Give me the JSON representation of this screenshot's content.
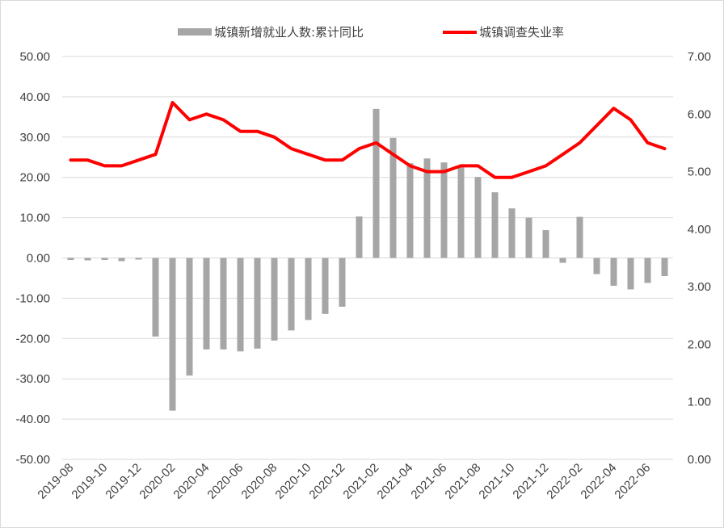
{
  "chart_data": {
    "type": "bar+line",
    "legend": {
      "placement": "top",
      "entries": [
        {
          "label": "城镇新增就业人数:累计同比",
          "kind": "bar",
          "color": "#a6a6a6"
        },
        {
          "label": "城镇调查失业率",
          "kind": "line",
          "color": "#ff0000"
        }
      ]
    },
    "left_axis": {
      "ylim": [
        -50,
        50
      ],
      "ticks": [
        "50.00",
        "40.00",
        "30.00",
        "20.00",
        "10.00",
        "0.00",
        "-10.00",
        "-20.00",
        "-30.00",
        "-40.00",
        "-50.00"
      ]
    },
    "right_axis": {
      "ylim": [
        0,
        7
      ],
      "ticks": [
        "7.00",
        "6.00",
        "5.00",
        "4.00",
        "3.00",
        "2.00",
        "1.00",
        "0.00"
      ]
    },
    "categories": [
      "2019-08",
      "2019-09",
      "2019-10",
      "2019-11",
      "2019-12",
      "2020-01",
      "2020-02",
      "2020-03",
      "2020-04",
      "2020-05",
      "2020-06",
      "2020-07",
      "2020-08",
      "2020-09",
      "2020-10",
      "2020-11",
      "2020-12",
      "2021-01",
      "2021-02",
      "2021-03",
      "2021-04",
      "2021-05",
      "2021-06",
      "2021-07",
      "2021-08",
      "2021-09",
      "2021-10",
      "2021-11",
      "2021-12",
      "2022-01",
      "2022-02",
      "2022-03",
      "2022-04",
      "2022-05",
      "2022-06",
      "2022-07"
    ],
    "x_tick_labels": [
      "2019-08",
      "2019-10",
      "2019-12",
      "2020-02",
      "2020-04",
      "2020-06",
      "2020-08",
      "2020-10",
      "2020-12",
      "2021-02",
      "2021-04",
      "2021-06",
      "2021-08",
      "2021-10",
      "2021-12",
      "2022-02",
      "2022-04",
      "2022-06"
    ],
    "series": [
      {
        "name": "城镇新增就业人数:累计同比",
        "type": "bar",
        "axis": "left",
        "color": "#a6a6a6",
        "values": [
          -0.5,
          -0.6,
          -0.5,
          -0.8,
          -0.4,
          -19.5,
          -37.9,
          -29.2,
          -22.7,
          -22.7,
          -23.2,
          -22.5,
          -20.5,
          -18.0,
          -15.4,
          -13.9,
          -12.1,
          10.3,
          37.0,
          29.8,
          23.5,
          24.7,
          23.7,
          22.5,
          20.1,
          16.3,
          12.3,
          10.0,
          6.9,
          -1.2,
          10.2,
          -4.0,
          -6.9,
          -7.8,
          -6.2,
          -4.5
        ]
      },
      {
        "name": "城镇调查失业率",
        "type": "line",
        "axis": "right",
        "color": "#ff0000",
        "values": [
          5.2,
          5.2,
          5.1,
          5.1,
          5.2,
          5.3,
          6.2,
          5.9,
          6.0,
          5.9,
          5.7,
          5.7,
          5.6,
          5.4,
          5.3,
          5.2,
          5.2,
          5.4,
          5.5,
          5.3,
          5.1,
          5.0,
          5.0,
          5.1,
          5.1,
          4.9,
          4.9,
          5.0,
          5.1,
          5.3,
          5.5,
          5.8,
          6.1,
          5.9,
          5.5,
          5.4
        ]
      }
    ]
  }
}
